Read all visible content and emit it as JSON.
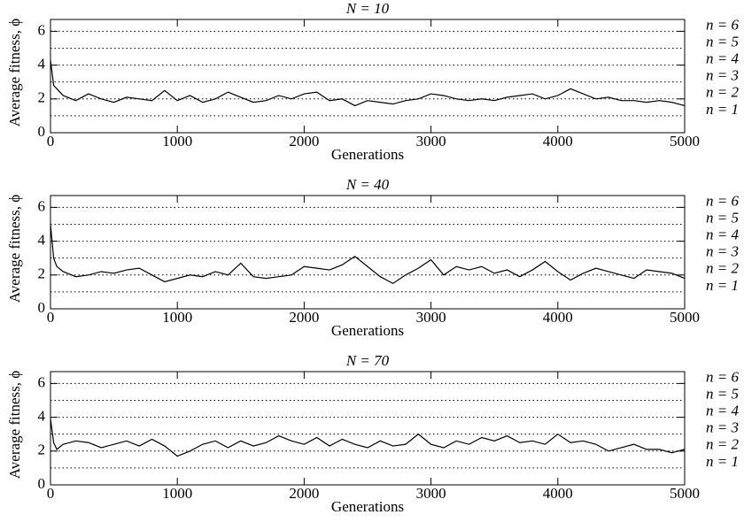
{
  "chart_data": [
    {
      "type": "line",
      "title": "N = 10",
      "x_label": "Generations",
      "y_label": "Average fitness, ϕ",
      "x": [
        0,
        25,
        50,
        100,
        200,
        300,
        400,
        500,
        600,
        700,
        800,
        900,
        1000,
        1100,
        1200,
        1300,
        1400,
        1500,
        1600,
        1700,
        1800,
        1900,
        2000,
        2100,
        2200,
        2300,
        2400,
        2500,
        2600,
        2700,
        2800,
        2900,
        3000,
        3100,
        3200,
        3300,
        3400,
        3500,
        3600,
        3700,
        3800,
        3900,
        4000,
        4100,
        4200,
        4300,
        4400,
        4500,
        4600,
        4700,
        4800,
        4900,
        5000
      ],
      "series": [
        {
          "color": "#000000",
          "values": [
            4.3,
            2.8,
            2.6,
            2.2,
            1.9,
            2.3,
            2.0,
            1.8,
            2.1,
            2.0,
            1.9,
            2.5,
            1.9,
            2.2,
            1.8,
            2.0,
            2.4,
            2.1,
            1.8,
            1.9,
            2.2,
            2.0,
            2.3,
            2.4,
            1.9,
            2.0,
            1.6,
            1.9,
            1.8,
            1.7,
            1.9,
            2.0,
            2.3,
            2.2,
            2.0,
            1.9,
            2.0,
            1.9,
            2.1,
            2.2,
            2.3,
            2.0,
            2.2,
            2.6,
            2.3,
            2.0,
            2.1,
            1.9,
            1.9,
            1.8,
            1.9,
            1.8,
            1.6
          ]
        }
      ],
      "xlim": [
        0,
        5000
      ],
      "xticks": [
        0,
        1000,
        2000,
        3000,
        4000,
        5000
      ],
      "ylim": [
        0,
        6.7
      ],
      "yticks": [
        0,
        2,
        4,
        6
      ],
      "reference_lines": [
        {
          "value": 1,
          "label": "n = 1"
        },
        {
          "value": 2,
          "label": "n = 2"
        },
        {
          "value": 3,
          "label": "n = 3"
        },
        {
          "value": 4,
          "label": "n = 4"
        },
        {
          "value": 5,
          "label": "n = 5"
        },
        {
          "value": 6,
          "label": "n = 6"
        }
      ]
    },
    {
      "type": "line",
      "title": "N = 40",
      "x_label": "Generations",
      "y_label": "Average fitness, ϕ",
      "x": [
        0,
        25,
        50,
        100,
        200,
        300,
        400,
        500,
        600,
        700,
        800,
        900,
        1000,
        1100,
        1200,
        1300,
        1400,
        1500,
        1600,
        1700,
        1800,
        1900,
        2000,
        2100,
        2200,
        2300,
        2400,
        2500,
        2600,
        2700,
        2800,
        2900,
        3000,
        3100,
        3200,
        3300,
        3400,
        3500,
        3600,
        3700,
        3800,
        3900,
        4000,
        4100,
        4200,
        4300,
        4400,
        4500,
        4600,
        4700,
        4800,
        4900,
        5000
      ],
      "series": [
        {
          "color": "#000000",
          "values": [
            5.0,
            3.0,
            2.5,
            2.2,
            1.9,
            2.0,
            2.2,
            2.1,
            2.3,
            2.4,
            2.0,
            1.6,
            1.8,
            2.0,
            1.9,
            2.2,
            2.0,
            2.7,
            1.9,
            1.8,
            1.9,
            2.0,
            2.5,
            2.4,
            2.3,
            2.6,
            3.1,
            2.5,
            1.9,
            1.5,
            2.0,
            2.4,
            2.9,
            2.0,
            2.5,
            2.3,
            2.5,
            2.1,
            2.3,
            1.9,
            2.3,
            2.8,
            2.2,
            1.7,
            2.1,
            2.4,
            2.2,
            2.0,
            1.8,
            2.3,
            2.2,
            2.1,
            1.8
          ]
        }
      ],
      "xlim": [
        0,
        5000
      ],
      "xticks": [
        0,
        1000,
        2000,
        3000,
        4000,
        5000
      ],
      "ylim": [
        0,
        6.7
      ],
      "yticks": [
        0,
        2,
        4,
        6
      ],
      "reference_lines": [
        {
          "value": 1,
          "label": "n = 1"
        },
        {
          "value": 2,
          "label": "n = 2"
        },
        {
          "value": 3,
          "label": "n = 3"
        },
        {
          "value": 4,
          "label": "n = 4"
        },
        {
          "value": 5,
          "label": "n = 5"
        },
        {
          "value": 6,
          "label": "n = 6"
        }
      ]
    },
    {
      "type": "line",
      "title": "N = 70",
      "x_label": "Generations",
      "y_label": "Average fitness, ϕ",
      "x": [
        0,
        25,
        50,
        100,
        200,
        300,
        400,
        500,
        600,
        700,
        800,
        900,
        1000,
        1100,
        1200,
        1300,
        1400,
        1500,
        1600,
        1700,
        1800,
        1900,
        2000,
        2100,
        2200,
        2300,
        2400,
        2500,
        2600,
        2700,
        2800,
        2900,
        3000,
        3100,
        3200,
        3300,
        3400,
        3500,
        3600,
        3700,
        3800,
        3900,
        4000,
        4100,
        4200,
        4300,
        4400,
        4500,
        4600,
        4700,
        4800,
        4900,
        5000
      ],
      "series": [
        {
          "color": "#000000",
          "values": [
            3.9,
            2.5,
            2.1,
            2.4,
            2.6,
            2.5,
            2.2,
            2.4,
            2.6,
            2.3,
            2.7,
            2.3,
            1.7,
            2.0,
            2.4,
            2.6,
            2.2,
            2.6,
            2.3,
            2.5,
            2.9,
            2.6,
            2.4,
            2.8,
            2.3,
            2.7,
            2.4,
            2.2,
            2.6,
            2.3,
            2.4,
            3.0,
            2.4,
            2.2,
            2.6,
            2.4,
            2.8,
            2.6,
            2.9,
            2.5,
            2.6,
            2.4,
            3.0,
            2.5,
            2.6,
            2.4,
            2.0,
            2.2,
            2.4,
            2.1,
            2.1,
            1.9,
            2.1
          ]
        }
      ],
      "xlim": [
        0,
        5000
      ],
      "xticks": [
        0,
        1000,
        2000,
        3000,
        4000,
        5000
      ],
      "ylim": [
        0,
        6.7
      ],
      "yticks": [
        0,
        2,
        4,
        6
      ],
      "reference_lines": [
        {
          "value": 1,
          "label": "n = 1"
        },
        {
          "value": 2,
          "label": "n = 2"
        },
        {
          "value": 3,
          "label": "n = 3"
        },
        {
          "value": 4,
          "label": "n = 4"
        },
        {
          "value": 5,
          "label": "n = 5"
        },
        {
          "value": 6,
          "label": "n = 6"
        }
      ]
    }
  ]
}
